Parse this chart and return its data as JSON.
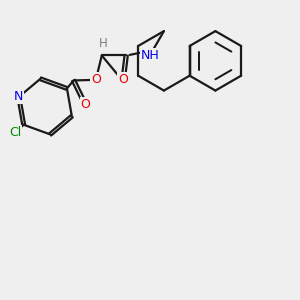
{
  "background_color": "#efefef",
  "bond_color": "#1a1a1a",
  "bond_width": 1.6,
  "atom_colors": {
    "N": "#0000ee",
    "O": "#ee0000",
    "Cl": "#008800",
    "H_label": "#808080",
    "C": "#1a1a1a"
  },
  "figsize": [
    3.0,
    3.0
  ],
  "dpi": 100
}
